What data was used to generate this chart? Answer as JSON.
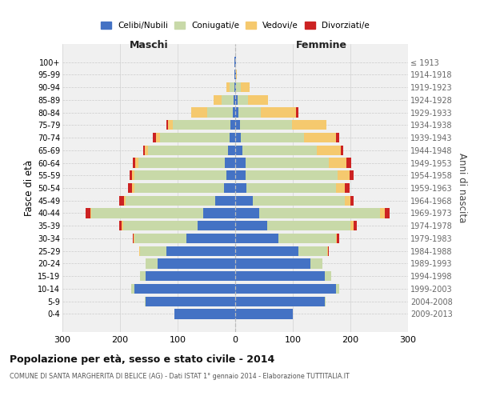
{
  "age_groups": [
    "0-4",
    "5-9",
    "10-14",
    "15-19",
    "20-24",
    "25-29",
    "30-34",
    "35-39",
    "40-44",
    "45-49",
    "50-54",
    "55-59",
    "60-64",
    "65-69",
    "70-74",
    "75-79",
    "80-84",
    "85-89",
    "90-94",
    "95-99",
    "100+"
  ],
  "birth_years": [
    "2009-2013",
    "2004-2008",
    "1999-2003",
    "1994-1998",
    "1989-1993",
    "1984-1988",
    "1979-1983",
    "1974-1978",
    "1969-1973",
    "1964-1968",
    "1959-1963",
    "1954-1958",
    "1949-1953",
    "1944-1948",
    "1939-1943",
    "1934-1938",
    "1929-1933",
    "1924-1928",
    "1919-1923",
    "1914-1918",
    "≤ 1913"
  ],
  "males": {
    "celibi": [
      105,
      155,
      175,
      155,
      135,
      120,
      85,
      65,
      55,
      35,
      20,
      15,
      18,
      12,
      10,
      8,
      4,
      3,
      2,
      1,
      1
    ],
    "coniugati": [
      0,
      2,
      5,
      10,
      20,
      45,
      90,
      130,
      195,
      155,
      155,
      160,
      150,
      140,
      120,
      100,
      45,
      20,
      8,
      0,
      0
    ],
    "vedovi": [
      0,
      0,
      0,
      0,
      0,
      1,
      1,
      2,
      2,
      3,
      4,
      4,
      5,
      5,
      8,
      8,
      28,
      15,
      5,
      0,
      0
    ],
    "divorziati": [
      0,
      0,
      0,
      0,
      0,
      1,
      2,
      5,
      8,
      8,
      7,
      4,
      5,
      3,
      5,
      4,
      0,
      0,
      0,
      0,
      0
    ]
  },
  "females": {
    "nubili": [
      100,
      155,
      175,
      155,
      130,
      110,
      75,
      55,
      42,
      30,
      20,
      18,
      18,
      12,
      10,
      8,
      5,
      4,
      2,
      1,
      1
    ],
    "coniugate": [
      0,
      2,
      5,
      12,
      22,
      50,
      100,
      145,
      210,
      160,
      155,
      160,
      145,
      130,
      110,
      90,
      40,
      18,
      8,
      0,
      0
    ],
    "vedove": [
      0,
      0,
      0,
      0,
      0,
      1,
      2,
      5,
      8,
      10,
      15,
      20,
      30,
      42,
      55,
      60,
      60,
      35,
      15,
      2,
      0
    ],
    "divorziate": [
      0,
      0,
      0,
      0,
      0,
      1,
      3,
      6,
      8,
      5,
      8,
      8,
      8,
      4,
      5,
      0,
      5,
      0,
      0,
      0,
      0
    ]
  },
  "colors": {
    "celibi": "#4472C4",
    "coniugati": "#c8d9a8",
    "vedovi": "#f5c96e",
    "divorziati": "#cc2222"
  },
  "xlim": 300,
  "title": "Popolazione per età, sesso e stato civile - 2014",
  "subtitle": "COMUNE DI SANTA MARGHERITA DI BELICE (AG) - Dati ISTAT 1° gennaio 2014 - Elaborazione TUTTITALIA.IT",
  "ylabel_left": "Fasce di età",
  "ylabel_right": "Anni di nascita",
  "xlabel_left": "Maschi",
  "xlabel_right": "Femmine",
  "bg_color": "#f0f0f0",
  "grid_color": "#cccccc"
}
